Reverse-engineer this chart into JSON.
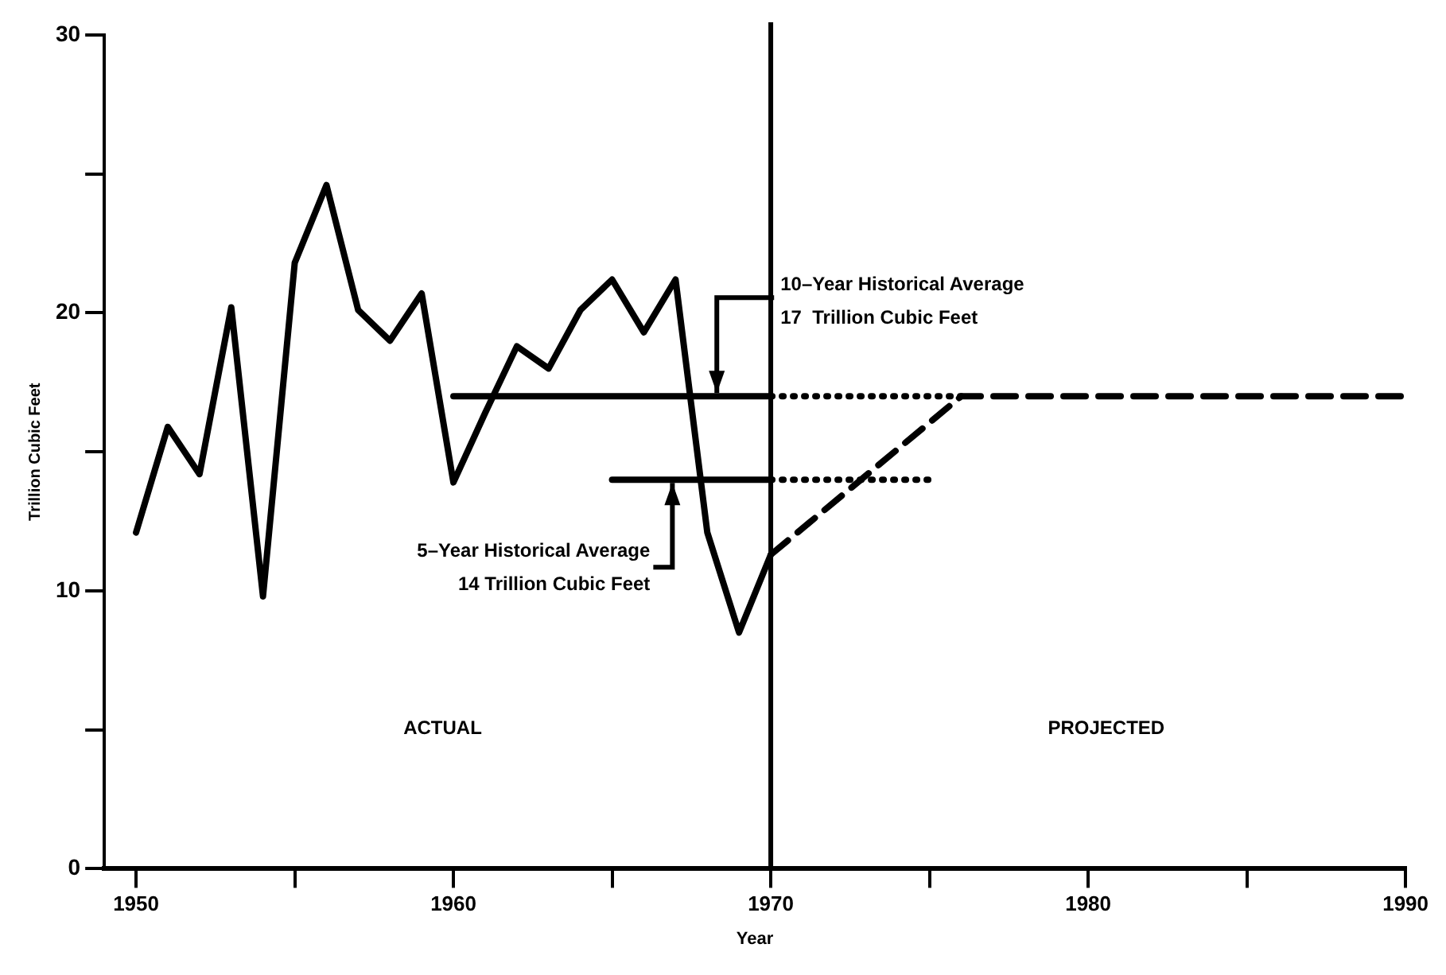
{
  "chart_data": {
    "type": "line",
    "xlabel": "Year",
    "ylabel": "Trillion Cubic Feet",
    "xlim": [
      1949,
      1990
    ],
    "ylim": [
      0,
      30
    ],
    "xticks": [
      1950,
      {
        "value": 1955,
        "label": null
      },
      1960,
      {
        "value": 1965,
        "label": null
      },
      1970,
      {
        "value": 1975,
        "label": null
      },
      1980,
      {
        "value": 1985,
        "label": null
      },
      1990
    ],
    "yticks": [
      0,
      {
        "value": 5,
        "label": null
      },
      10,
      {
        "value": 15,
        "label": null
      },
      20,
      {
        "value": 25,
        "label": null
      },
      30
    ],
    "grid": false,
    "legend": false,
    "marker": "none",
    "series": [
      {
        "color": "#000000",
        "line_style": "solid",
        "x": [
          1950,
          1951,
          1952,
          1953,
          1954,
          1955,
          1956,
          1957,
          1958,
          1959,
          1960,
          1961,
          1962,
          1963,
          1964,
          1965,
          1966,
          1967,
          1968,
          1969,
          1970
        ],
        "values": [
          12.1,
          15.9,
          14.2,
          20.2,
          9.8,
          21.8,
          24.6,
          20.1,
          19.0,
          20.7,
          13.9,
          16.4,
          18.8,
          18.0,
          20.1,
          21.2,
          19.3,
          21.2,
          12.1,
          8.5,
          11.3
        ]
      },
      {
        "color": "#000000",
        "line_style": "dashed",
        "x": [
          1970,
          1976,
          1990
        ],
        "values": [
          11.3,
          17,
          17
        ]
      },
      {
        "color": "#000000",
        "line_style": "solid",
        "x": [
          1960,
          1970
        ],
        "values": [
          17,
          17
        ]
      },
      {
        "color": "#000000",
        "line_style": "dotted",
        "x": [
          1970,
          1976
        ],
        "values": [
          17,
          17
        ]
      },
      {
        "color": "#000000",
        "line_style": "solid",
        "x": [
          1965,
          1970
        ],
        "values": [
          14,
          14
        ]
      },
      {
        "color": "#000000",
        "line_style": "dotted",
        "x": [
          1970,
          1975
        ],
        "values": [
          14,
          14
        ]
      }
    ],
    "ref_lines": [
      {
        "axis": "x",
        "value": 1970,
        "color": "#000000",
        "line_style": "solid"
      }
    ],
    "annotations": [
      {
        "text": "10–Year Historical Average\n17  Trillion Cubic Feet",
        "x": 1968.3,
        "y": 17
      },
      {
        "text": "5–Year Historical Average\n14 Trillion Cubic Feet",
        "x": 1966.9,
        "y": 14
      },
      "ACTUAL",
      "PROJECTED"
    ]
  }
}
